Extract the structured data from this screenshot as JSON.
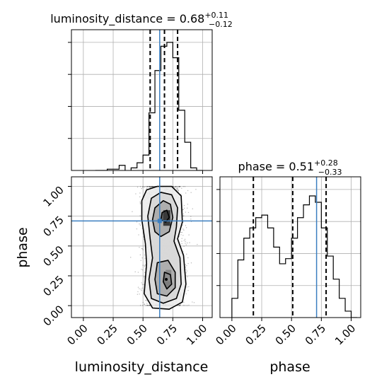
{
  "chart_data": [
    {
      "type": "histogram",
      "panel": "luminosity_distance marginal",
      "title": {
        "param": "luminosity_distance",
        "median": "0.68",
        "plus": "+0.11",
        "minus": "−0.12"
      },
      "x_range": [
        -0.1,
        1.08
      ],
      "bins_edges": [
        0.4,
        0.45,
        0.5,
        0.55,
        0.6,
        0.65,
        0.7,
        0.75,
        0.8,
        0.85,
        0.9,
        0.95,
        1.0
      ],
      "values": [
        0.02,
        0.06,
        0.12,
        0.45,
        0.78,
        0.97,
        1.0,
        0.88,
        0.47,
        0.22,
        0.02,
        0.0
      ],
      "low_bins_edges": [
        0.1,
        0.2,
        0.3,
        0.35
      ],
      "low_values": [
        0.0,
        0.01,
        0.04
      ],
      "quantiles": [
        0.56,
        0.68,
        0.79
      ],
      "truth": 0.64,
      "y_ticks_count": 4
    },
    {
      "type": "histogram",
      "panel": "phase marginal",
      "title": {
        "param": "phase",
        "median": "0.51",
        "plus": "+0.28",
        "minus": "−0.33"
      },
      "x_range": [
        -0.1,
        1.08
      ],
      "x_ticks": [
        0.0,
        0.25,
        0.5,
        0.75,
        1.0
      ],
      "x_tick_labels": [
        "0.00",
        "0.25",
        "0.50",
        "0.75",
        "1.00"
      ],
      "xlabel": "phase",
      "bins_edges": [
        0.0,
        0.05,
        0.1,
        0.15,
        0.2,
        0.25,
        0.3,
        0.35,
        0.4,
        0.45,
        0.5,
        0.55,
        0.6,
        0.65,
        0.7,
        0.75,
        0.8,
        0.85,
        0.9,
        0.95,
        1.0,
        1.05
      ],
      "values": [
        0.15,
        0.45,
        0.62,
        0.7,
        0.78,
        0.8,
        0.7,
        0.55,
        0.42,
        0.46,
        0.62,
        0.78,
        0.88,
        0.95,
        0.9,
        0.7,
        0.48,
        0.3,
        0.15,
        0.05,
        0.0
      ],
      "quantiles": [
        0.18,
        0.51,
        0.79
      ],
      "truth": 0.71,
      "y_ticks_count": 4
    },
    {
      "type": "scatter-contour",
      "panel": "2D posterior",
      "x_range": [
        -0.1,
        1.08
      ],
      "y_range": [
        -0.1,
        1.08
      ],
      "x_ticks": [
        0.0,
        0.25,
        0.5,
        0.75,
        1.0
      ],
      "x_tick_labels": [
        "0.00",
        "0.25",
        "0.50",
        "0.75",
        "1.00"
      ],
      "y_ticks": [
        0.0,
        0.25,
        0.5,
        0.75,
        1.0
      ],
      "y_tick_labels": [
        "0.00",
        "0.25",
        "0.50",
        "0.75",
        "1.00"
      ],
      "xlabel": "luminosity_distance",
      "ylabel": "phase",
      "truth": [
        0.64,
        0.71
      ],
      "contours": [
        [
          [
            0.53,
            0.97
          ],
          [
            0.62,
            1.0
          ],
          [
            0.74,
            1.0
          ],
          [
            0.82,
            0.92
          ],
          [
            0.83,
            0.7
          ],
          [
            0.79,
            0.56
          ],
          [
            0.84,
            0.42
          ],
          [
            0.86,
            0.18
          ],
          [
            0.83,
            0.03
          ],
          [
            0.72,
            -0.03
          ],
          [
            0.58,
            -0.02
          ],
          [
            0.51,
            0.1
          ],
          [
            0.53,
            0.35
          ],
          [
            0.52,
            0.52
          ],
          [
            0.49,
            0.72
          ],
          [
            0.49,
            0.88
          ]
        ],
        [
          [
            0.57,
            0.9
          ],
          [
            0.65,
            0.95
          ],
          [
            0.74,
            0.93
          ],
          [
            0.79,
            0.82
          ],
          [
            0.78,
            0.66
          ],
          [
            0.76,
            0.54
          ],
          [
            0.81,
            0.4
          ],
          [
            0.82,
            0.18
          ],
          [
            0.78,
            0.06
          ],
          [
            0.67,
            0.02
          ],
          [
            0.57,
            0.06
          ],
          [
            0.55,
            0.22
          ],
          [
            0.58,
            0.4
          ],
          [
            0.56,
            0.56
          ],
          [
            0.54,
            0.75
          ]
        ],
        [
          [
            0.6,
            0.82
          ],
          [
            0.67,
            0.88
          ],
          [
            0.73,
            0.85
          ],
          [
            0.75,
            0.74
          ],
          [
            0.72,
            0.62
          ],
          [
            0.65,
            0.58
          ],
          [
            0.6,
            0.62
          ],
          [
            0.58,
            0.72
          ]
        ],
        [
          [
            0.62,
            0.36
          ],
          [
            0.71,
            0.38
          ],
          [
            0.77,
            0.28
          ],
          [
            0.77,
            0.15
          ],
          [
            0.7,
            0.08
          ],
          [
            0.62,
            0.1
          ],
          [
            0.6,
            0.22
          ]
        ],
        [
          [
            0.66,
            0.78
          ],
          [
            0.7,
            0.8
          ],
          [
            0.72,
            0.74
          ],
          [
            0.69,
            0.7
          ],
          [
            0.65,
            0.72
          ]
        ],
        [
          [
            0.68,
            0.28
          ],
          [
            0.73,
            0.26
          ],
          [
            0.74,
            0.18
          ],
          [
            0.7,
            0.14
          ],
          [
            0.67,
            0.2
          ]
        ]
      ]
    }
  ]
}
